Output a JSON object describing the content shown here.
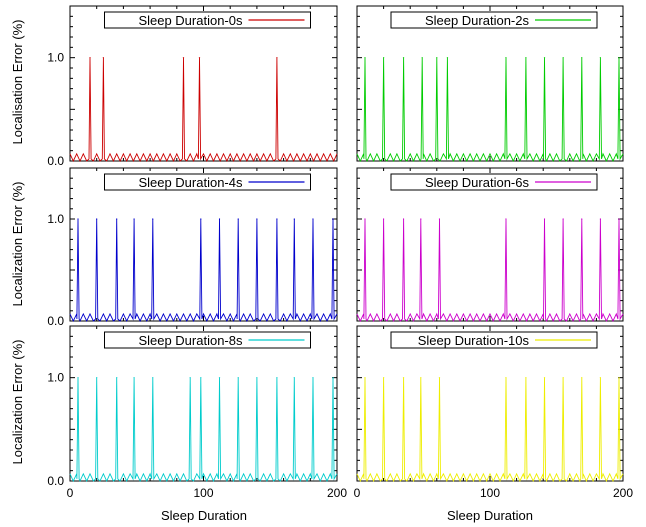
{
  "figure": {
    "xlabel_left": "Sleep Duration",
    "xlabel_right": "Sleep Duration",
    "ylabels": [
      "Localisation Error (%)",
      "Localization Error (%)",
      "Localization Error (%)"
    ]
  },
  "chart_data": [
    {
      "type": "line",
      "legend": "Sleep Duration-0s",
      "color": "#cc0000",
      "xlim": [
        0,
        200
      ],
      "ylim": [
        0,
        1.5
      ],
      "y_ticks": [
        "0.0",
        "1.0"
      ],
      "x_ticks": [],
      "baseline": 0.07,
      "spikes": [
        15,
        25,
        85,
        97,
        155
      ],
      "spike_value": 1.0
    },
    {
      "type": "line",
      "legend": "Sleep Duration-2s",
      "color": "#00cc00",
      "xlim": [
        0,
        200
      ],
      "ylim": [
        0,
        1.5
      ],
      "y_ticks": [],
      "x_ticks": [],
      "baseline": 0.07,
      "spikes": [
        6,
        20,
        35,
        49,
        60,
        68,
        112,
        127,
        141,
        155,
        169,
        183,
        197
      ],
      "spike_value": 1.0
    },
    {
      "type": "line",
      "legend": "Sleep Duration-4s",
      "color": "#0000cc",
      "xlim": [
        0,
        200
      ],
      "ylim": [
        0,
        1.5
      ],
      "y_ticks": [
        "0.0",
        "1.0"
      ],
      "x_ticks": [],
      "baseline": 0.07,
      "spikes": [
        6,
        20,
        35,
        48,
        62,
        98,
        112,
        126,
        140,
        155,
        168,
        182,
        197
      ],
      "spike_value": 1.0
    },
    {
      "type": "line",
      "legend": "Sleep Duration-6s",
      "color": "#cc00cc",
      "xlim": [
        0,
        200
      ],
      "ylim": [
        0,
        1.5
      ],
      "y_ticks": [],
      "x_ticks": [],
      "baseline": 0.07,
      "spikes": [
        6,
        20,
        35,
        48,
        62,
        112,
        141,
        155,
        169,
        183,
        197
      ],
      "spike_value": 1.0
    },
    {
      "type": "line",
      "legend": "Sleep Duration-8s",
      "color": "#00cccc",
      "xlim": [
        0,
        200
      ],
      "ylim": [
        0,
        1.5
      ],
      "y_ticks": [
        "0.0",
        "1.0"
      ],
      "x_ticks": [
        "0",
        "100",
        "200"
      ],
      "baseline": 0.07,
      "spikes": [
        6,
        20,
        35,
        48,
        62,
        90,
        98,
        112,
        126,
        140,
        155,
        168,
        182,
        197
      ],
      "spike_value": 1.0
    },
    {
      "type": "line",
      "legend": "Sleep Duration-10s",
      "color": "#eeee00",
      "xlim": [
        0,
        200
      ],
      "ylim": [
        0,
        1.5
      ],
      "y_ticks": [],
      "x_ticks": [
        "0",
        "100",
        "200"
      ],
      "baseline": 0.07,
      "spikes": [
        6,
        20,
        35,
        48,
        62,
        112,
        127,
        141,
        155,
        169,
        183,
        197
      ],
      "spike_value": 1.0
    }
  ]
}
